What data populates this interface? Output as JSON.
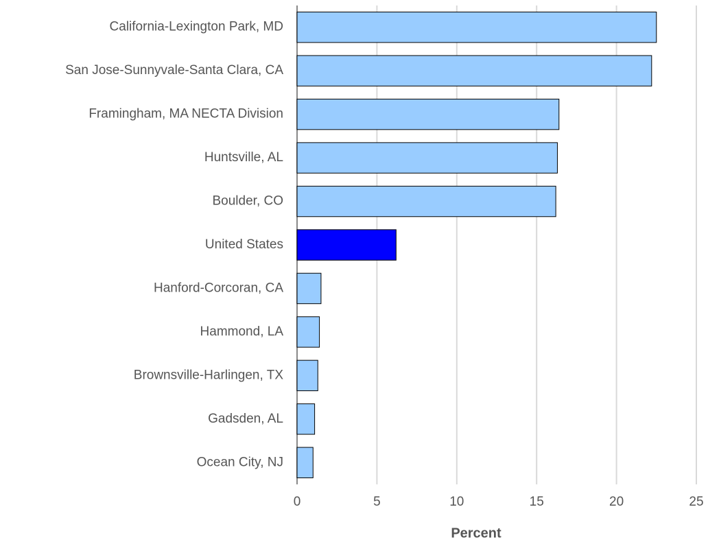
{
  "chart_data": {
    "type": "hbar",
    "categories": [
      "California-Lexington Park, MD",
      "San Jose-Sunnyvale-Santa Clara, CA",
      "Framingham, MA NECTA Division",
      "Huntsville, AL",
      "Boulder, CO",
      "United States",
      "Hanford-Corcoran, CA",
      "Hammond, LA",
      "Brownsville-Harlingen, TX",
      "Gadsden, AL",
      "Ocean City, NJ"
    ],
    "values": [
      22.5,
      22.2,
      16.4,
      16.3,
      16.2,
      6.2,
      1.5,
      1.4,
      1.3,
      1.1,
      1.0
    ],
    "colors": [
      "#99ccff",
      "#99ccff",
      "#99ccff",
      "#99ccff",
      "#99ccff",
      "#0000ff",
      "#99ccff",
      "#99ccff",
      "#99ccff",
      "#99ccff",
      "#99ccff"
    ],
    "x_label": "Percent",
    "xlim": [
      0,
      25
    ],
    "xticks": [
      0,
      5,
      10,
      15,
      20,
      25
    ],
    "grid": true
  }
}
